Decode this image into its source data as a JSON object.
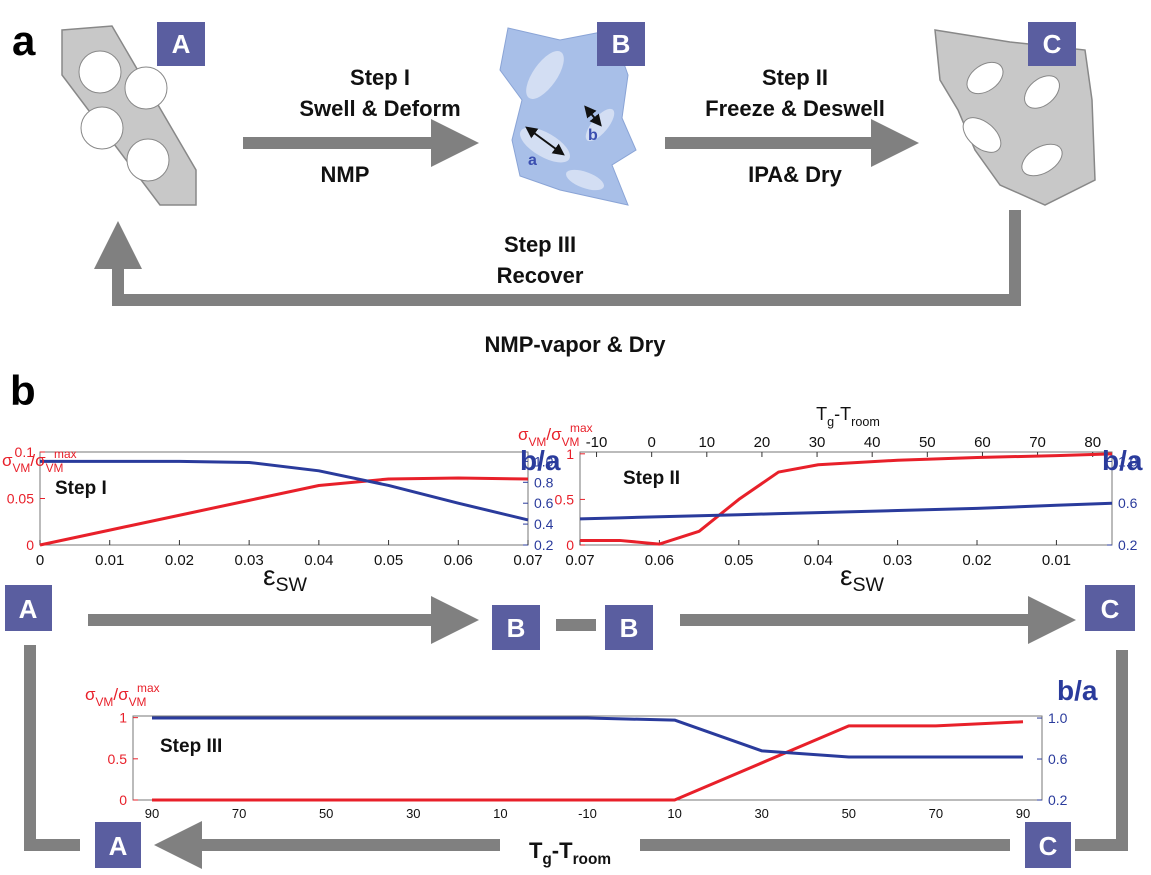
{
  "panels": [
    "a",
    "b"
  ],
  "diagram": {
    "boxes": [
      "A",
      "B",
      "C"
    ],
    "step1": [
      "Step I",
      "Swell & Deform",
      "NMP"
    ],
    "step2": [
      "Step II",
      "Freeze & Deswell",
      "IPA& Dry"
    ],
    "step3": [
      "Step III",
      "Recover"
    ],
    "recover_label": "NMP-vapor & Dry",
    "dims": [
      "a",
      "b"
    ]
  },
  "flow_boxes": [
    "A",
    "B",
    "B",
    "C",
    "A",
    "C"
  ],
  "chart_data": [
    {
      "type": "line",
      "annotation": "Step I",
      "y_label": [
        "σ",
        "VM",
        "/σ",
        "VM",
        "max"
      ],
      "y2_label": "b/a",
      "x_label": [
        "ε",
        "SW"
      ],
      "x": [
        0,
        0.01,
        0.02,
        0.03,
        0.04,
        0.05,
        0.06,
        0.07
      ],
      "series": [
        {
          "color": "#e8202a",
          "values": [
            0,
            0.016,
            0.032,
            0.048,
            0.064,
            0.071,
            0.072,
            0.071
          ]
        },
        {
          "color": "#2a3b9c",
          "axis": "y2",
          "values": [
            1,
            1,
            1,
            0.99,
            0.91,
            0.77,
            0.6,
            0.44
          ]
        }
      ],
      "xlim": [
        0,
        0.07
      ],
      "xticks": [
        0,
        0.01,
        0.02,
        0.03,
        0.04,
        0.05,
        0.06,
        0.07
      ],
      "ylim": [
        0,
        0.1
      ],
      "yticks": [
        0,
        0.05,
        0.1
      ],
      "y2lim": [
        0.2,
        1.09
      ],
      "y2ticks": [
        0.2,
        0.4,
        0.6,
        0.8,
        {
          "value": 1,
          "label": "1.0"
        }
      ]
    },
    {
      "type": "line",
      "annotation": "Step II",
      "y_label": [
        "σ",
        "VM",
        "/σ",
        "VM",
        "max"
      ],
      "y2_label": "b/a",
      "x_label": [
        "ε",
        "SW"
      ],
      "x2_label": [
        "T",
        "g",
        "-T",
        "room"
      ],
      "x": [
        0.07,
        0.065,
        0.06,
        0.055,
        0.05,
        0.045,
        0.04,
        0.03,
        0.02,
        0.01,
        0.003
      ],
      "series": [
        {
          "color": "#e8202a",
          "values": [
            0.05,
            0.05,
            0.01,
            0.15,
            0.5,
            0.8,
            0.88,
            0.93,
            0.96,
            0.98,
            1
          ]
        },
        {
          "color": "#2a3b9c",
          "axis": "y2",
          "values": [
            0.45,
            0.46,
            0.47,
            0.48,
            0.49,
            0.5,
            0.51,
            0.53,
            0.55,
            0.58,
            0.6
          ]
        }
      ],
      "xlim": [
        0.07,
        0.003
      ],
      "xticks": [
        0.07,
        0.06,
        0.05,
        0.04,
        0.03,
        0.02,
        0.01
      ],
      "x2lim": [
        -13,
        83.5
      ],
      "x2ticks": [
        -10,
        0,
        10,
        20,
        30,
        40,
        50,
        60,
        70,
        80
      ],
      "ylim": [
        0,
        1.02
      ],
      "yticks": [
        0,
        0.5,
        1
      ],
      "y2lim": [
        0.2,
        1.09
      ],
      "y2ticks": [
        0.2,
        0.6,
        {
          "value": 1,
          "label": "1.0"
        }
      ]
    },
    {
      "type": "line",
      "annotation": "Step III",
      "y_label": [
        "σ",
        "VM",
        "/σ",
        "VM",
        "max"
      ],
      "y2_label": "b/a",
      "x_label": [
        "T",
        "g",
        "-T",
        "room"
      ],
      "categories": [
        "90",
        "70",
        "50",
        "30",
        "10",
        "-10",
        "10",
        "30",
        "50",
        "70",
        "90"
      ],
      "series": [
        {
          "color": "#e8202a",
          "values": [
            0,
            0,
            0,
            0,
            0,
            0,
            0,
            0.45,
            0.9,
            0.9,
            0.95
          ]
        },
        {
          "color": "#2a3b9c",
          "axis": "y2",
          "values": [
            1,
            1,
            1,
            1,
            1,
            1,
            0.98,
            0.68,
            0.62,
            0.62,
            0.62
          ]
        }
      ],
      "ylim": [
        0,
        1.02
      ],
      "yticks": [
        0,
        0.5,
        1
      ],
      "y2lim": [
        0.2,
        1.02
      ],
      "y2ticks": [
        0.2,
        0.6,
        {
          "value": 1,
          "label": "1.0"
        }
      ]
    }
  ]
}
